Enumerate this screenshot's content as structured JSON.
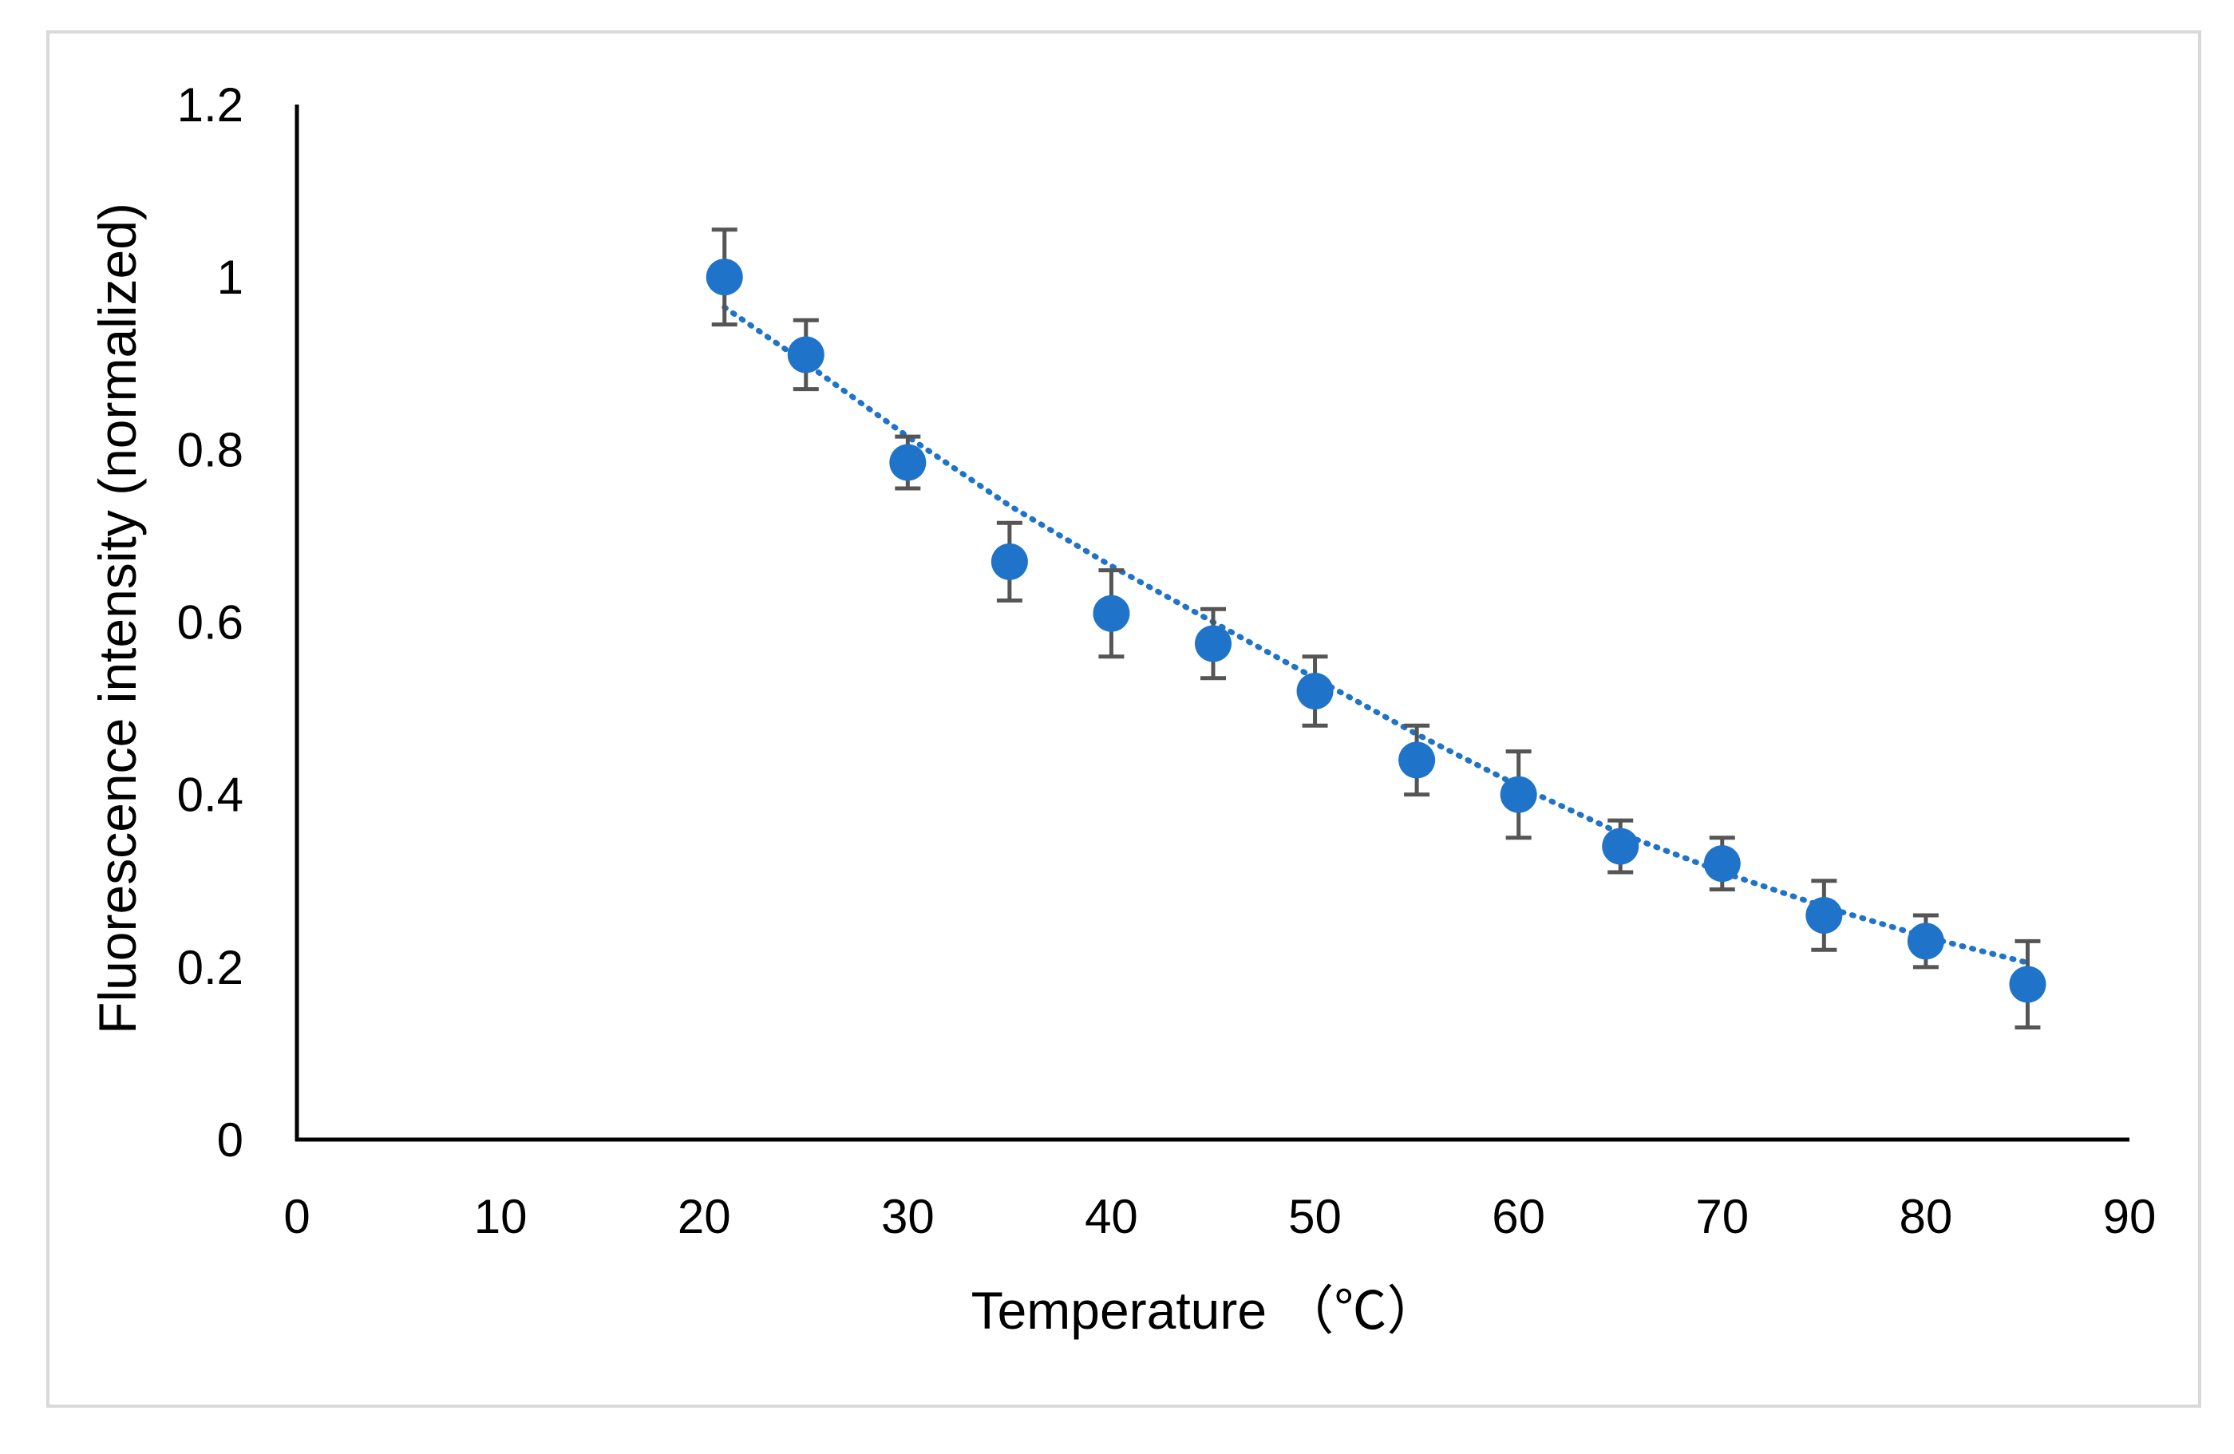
{
  "chart_data": {
    "type": "scatter",
    "title": "",
    "xlabel": "Temperature （℃）",
    "ylabel": "Fluorescence intensity (normalized)",
    "xlim": [
      0,
      90
    ],
    "ylim": [
      0,
      1.2
    ],
    "x_ticks": [
      0,
      10,
      20,
      30,
      40,
      50,
      60,
      70,
      80,
      90
    ],
    "x_tick_labels": [
      "0",
      "10",
      "20",
      "30",
      "40",
      "50",
      "60",
      "70",
      "80",
      "90"
    ],
    "y_ticks": [
      0,
      0.2,
      0.4,
      0.6,
      0.8,
      1.0,
      1.2
    ],
    "y_tick_labels": [
      "0",
      "0.2",
      "0.4",
      "0.6",
      "0.8",
      "1",
      "1.2"
    ],
    "grid": false,
    "legend": "none",
    "series": [
      {
        "name": "Fluorescence intensity",
        "x": [
          21,
          25,
          30,
          35,
          40,
          45,
          50,
          55,
          60,
          65,
          70,
          75,
          80,
          85
        ],
        "y": [
          1.0,
          0.91,
          0.785,
          0.67,
          0.61,
          0.575,
          0.52,
          0.44,
          0.4,
          0.34,
          0.32,
          0.26,
          0.23,
          0.18
        ],
        "error": [
          0.055,
          0.04,
          0.03,
          0.045,
          0.05,
          0.04,
          0.04,
          0.04,
          0.05,
          0.03,
          0.03,
          0.04,
          0.03,
          0.05
        ],
        "color": "#1f73c8",
        "error_color": "#555555"
      }
    ],
    "trendline": {
      "style": "dotted",
      "color": "#1f73c8",
      "x": [
        21,
        25,
        30,
        35,
        40,
        45,
        50,
        55,
        60,
        65,
        70,
        75,
        80,
        85
      ],
      "y": [
        0.965,
        0.9,
        0.815,
        0.735,
        0.665,
        0.6,
        0.535,
        0.47,
        0.41,
        0.355,
        0.31,
        0.27,
        0.235,
        0.205
      ]
    },
    "axis_color": "#000000"
  }
}
